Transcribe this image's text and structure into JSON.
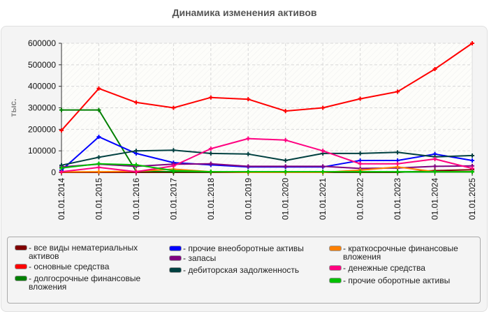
{
  "title": "Динамика изменения активов",
  "chart_data": {
    "type": "line",
    "title": "Динамика изменения активов",
    "xlabel": "",
    "ylabel": "тыс.",
    "ylim": [
      0,
      600000
    ],
    "yticks": [
      0,
      100000,
      200000,
      300000,
      400000,
      500000,
      600000
    ],
    "grid": true,
    "legend_position": "bottom",
    "categories": [
      "01.01.2014",
      "01.01.2015",
      "01.01.2016",
      "01.01.2017",
      "01.01.2018",
      "01.01.2019",
      "01.01.2020",
      "01.01.2021",
      "01.01.2022",
      "01.01.2023",
      "01.01.2024",
      "01.01.2025"
    ],
    "series": [
      {
        "name": "все виды нематериальных активов",
        "color": "#800000",
        "values": [
          0,
          0,
          0,
          0,
          0,
          0,
          0,
          0,
          0,
          0,
          8000,
          12000
        ]
      },
      {
        "name": "основные средства",
        "color": "#ff0000",
        "values": [
          195000,
          390000,
          325000,
          300000,
          348000,
          340000,
          285000,
          300000,
          342000,
          375000,
          480000,
          600000
        ]
      },
      {
        "name": "долгосрочные финансовые вложения",
        "color": "#008000",
        "values": [
          290000,
          290000,
          5000,
          3000,
          2000,
          2000,
          2000,
          2000,
          2000,
          2000,
          2000,
          2000
        ]
      },
      {
        "name": "прочие внеоборотные активы",
        "color": "#0000ff",
        "values": [
          10000,
          165000,
          88000,
          45000,
          35000,
          25000,
          25000,
          25000,
          55000,
          55000,
          85000,
          55000
        ]
      },
      {
        "name": "запасы",
        "color": "#800080",
        "values": [
          25000,
          38000,
          28000,
          38000,
          40000,
          28000,
          28000,
          28000,
          18000,
          20000,
          28000,
          30000
        ]
      },
      {
        "name": "дебиторская задолженность",
        "color": "#004040",
        "values": [
          33000,
          70000,
          100000,
          103000,
          88000,
          85000,
          55000,
          88000,
          88000,
          93000,
          72000,
          78000
        ]
      },
      {
        "name": "краткосрочные финансовые вложения",
        "color": "#ff8000",
        "values": [
          2000,
          3000,
          5000,
          15000,
          3000,
          0,
          0,
          0,
          10000,
          25000,
          3000,
          3000
        ]
      },
      {
        "name": "денежные средства",
        "color": "#ff0080",
        "values": [
          3000,
          23000,
          3000,
          30000,
          110000,
          157000,
          150000,
          100000,
          40000,
          40000,
          62000,
          18000
        ]
      },
      {
        "name": "прочие оборотные активы",
        "color": "#00c000",
        "values": [
          20000,
          40000,
          35000,
          8000,
          3000,
          3000,
          3000,
          3000,
          3000,
          3000,
          3000,
          3000
        ]
      }
    ]
  },
  "legend": {
    "items": [
      {
        "label": "- все виды нематериальных активов",
        "color": "#800000"
      },
      {
        "label": "- основные средства",
        "color": "#ff0000"
      },
      {
        "label": "- долгосрочные финансовые вложения",
        "color": "#008000"
      },
      {
        "label": "- прочие внеоборотные активы",
        "color": "#0000ff"
      },
      {
        "label": "- запасы",
        "color": "#800080"
      },
      {
        "label": "- дебиторская задолженность",
        "color": "#004040"
      },
      {
        "label": "- краткосрочные финансовые вложения",
        "color": "#ff8000"
      },
      {
        "label": "- денежные средства",
        "color": "#ff0080"
      },
      {
        "label": "- прочие оборотные активы",
        "color": "#00c000"
      }
    ]
  }
}
